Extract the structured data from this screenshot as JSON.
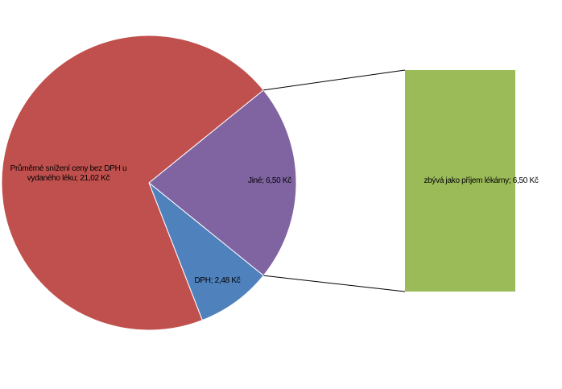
{
  "chart_data": {
    "type": "pie",
    "values": [
      21.02,
      2.48,
      6.5
    ],
    "value_labels": [
      "Průměrné snížení ceny bez DPH u vydaného léku; 21,02 Kč",
      "DPH; 2,48 Kč",
      "Jiné; 6,50 Kč"
    ],
    "colors": [
      "#c0504d",
      "#4f81bd",
      "#8064a2"
    ],
    "secondary": {
      "type": "bar",
      "values": [
        6.5
      ],
      "value_labels": [
        "zbývá jako příjem lékárny; 6,50 Kč"
      ],
      "color": "#9bbb59"
    }
  }
}
